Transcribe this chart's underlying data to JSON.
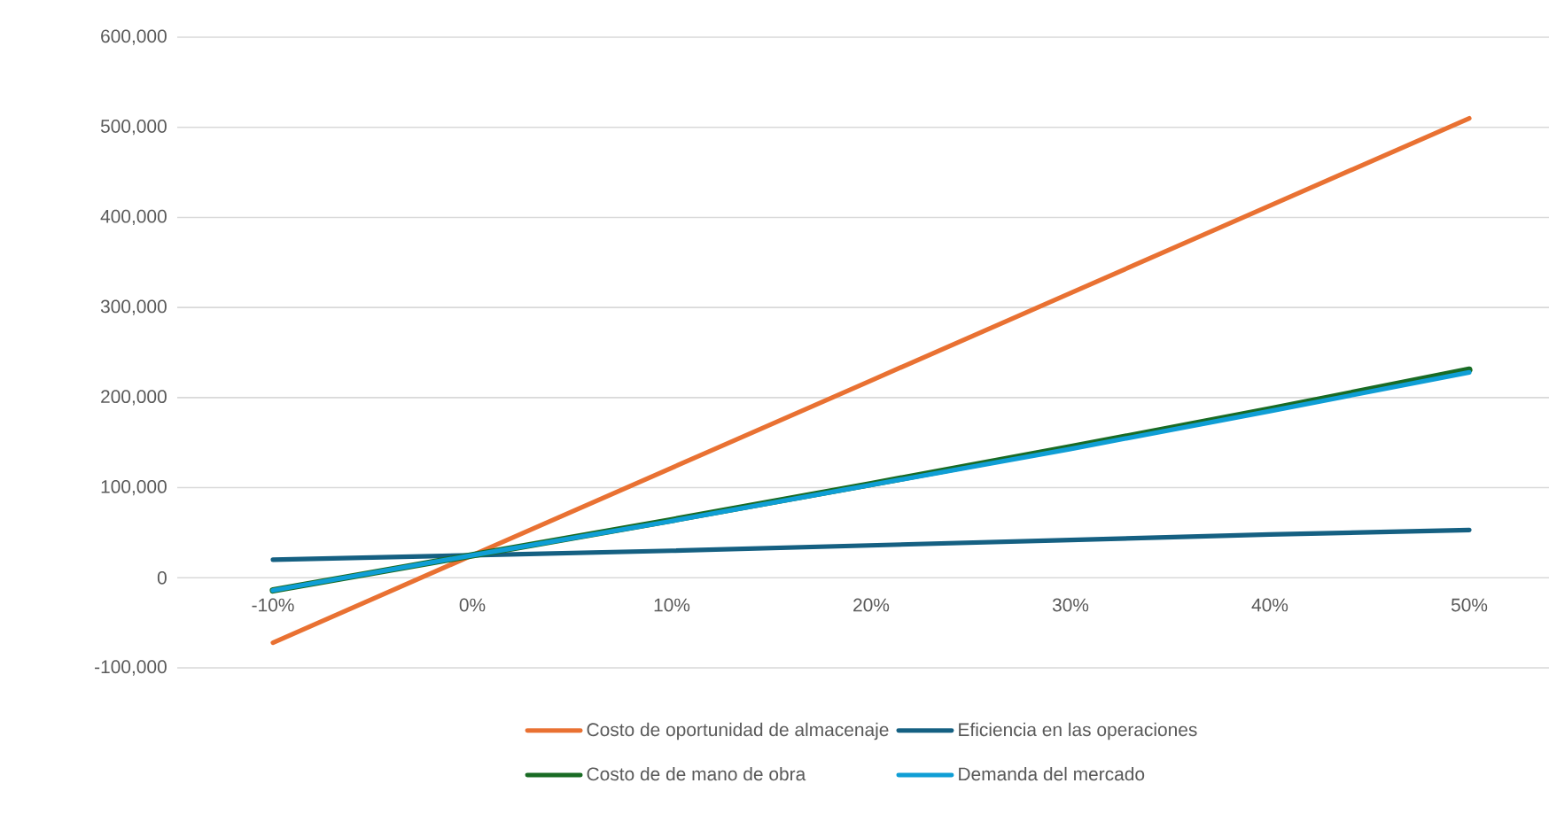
{
  "chart_data": {
    "type": "line",
    "categories": [
      "-10%",
      "0%",
      "10%",
      "20%",
      "30%",
      "40%",
      "50%"
    ],
    "series": [
      {
        "name": "Costo de oportunidad de almacenaje",
        "color": "#e97132",
        "values": [
          -72000,
          25000,
          122000,
          219000,
          316000,
          413000,
          510000
        ]
      },
      {
        "name": "Eficiencia en las operaciones",
        "color": "#156082",
        "values": [
          20000,
          25000,
          30000,
          36000,
          42000,
          48000,
          53000
        ]
      },
      {
        "name": "Costo de de mano de obra",
        "color": "#196b24",
        "values": [
          -14000,
          25000,
          64000,
          104000,
          145000,
          187000,
          231000
        ]
      },
      {
        "name": "Demanda del mercado",
        "color": "#0f9ed5",
        "values": [
          -14000,
          25000,
          63000,
          103000,
          143000,
          185000,
          228000
        ]
      }
    ],
    "ylim": [
      -100000,
      600000
    ],
    "yticks": [
      {
        "value": -100000,
        "label": "-100,000"
      },
      0,
      {
        "value": 100000,
        "label": "100,000"
      },
      {
        "value": 200000,
        "label": "200,000"
      },
      {
        "value": 300000,
        "label": "300,000"
      },
      {
        "value": 400000,
        "label": "400,000"
      },
      {
        "value": 500000,
        "label": "500,000"
      },
      {
        "value": 600000,
        "label": "600,000"
      }
    ],
    "grid": "y",
    "legend": "bottom",
    "marker": "none",
    "line_style": "solid"
  }
}
